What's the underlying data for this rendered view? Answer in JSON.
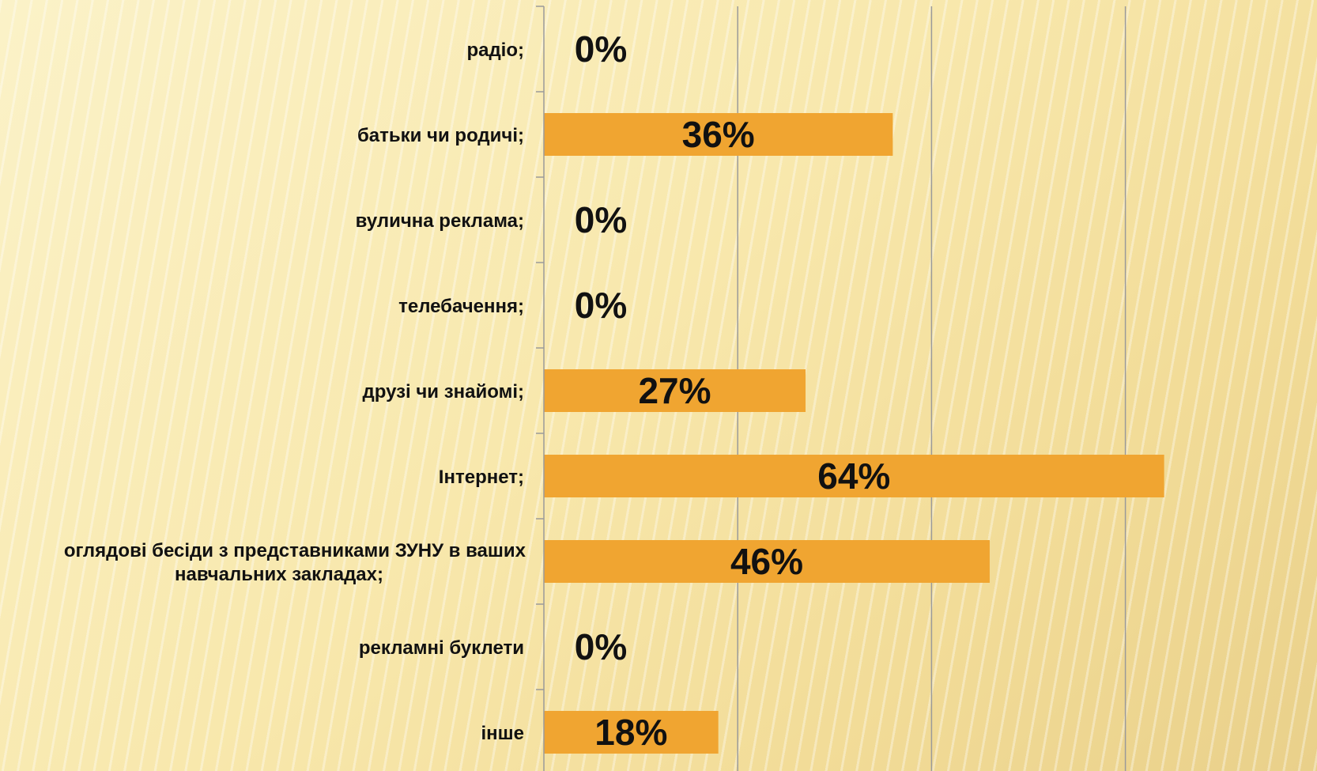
{
  "chart_data": {
    "type": "bar",
    "orientation": "horizontal",
    "categories": [
      "радіо;",
      "батьки чи родичі;",
      "вулична реклама;",
      "телебачення;",
      "друзі чи знайомі;",
      "Інтернет;",
      [
        "оглядові бесіди з представниками ЗУНУ в ваших",
        "навчальних закладах;"
      ],
      "рекламні буклети",
      "інше"
    ],
    "values": [
      0,
      36,
      0,
      0,
      27,
      64,
      46,
      0,
      18
    ],
    "data_labels": [
      "0%",
      "36%",
      "0%",
      "0%",
      "27%",
      "64%",
      "46%",
      "0%",
      "18%"
    ],
    "xlim": [
      0,
      80
    ],
    "grid": true,
    "bar_color": "#f0a531",
    "grid_color": "#9a9a9a",
    "legend": "none"
  }
}
